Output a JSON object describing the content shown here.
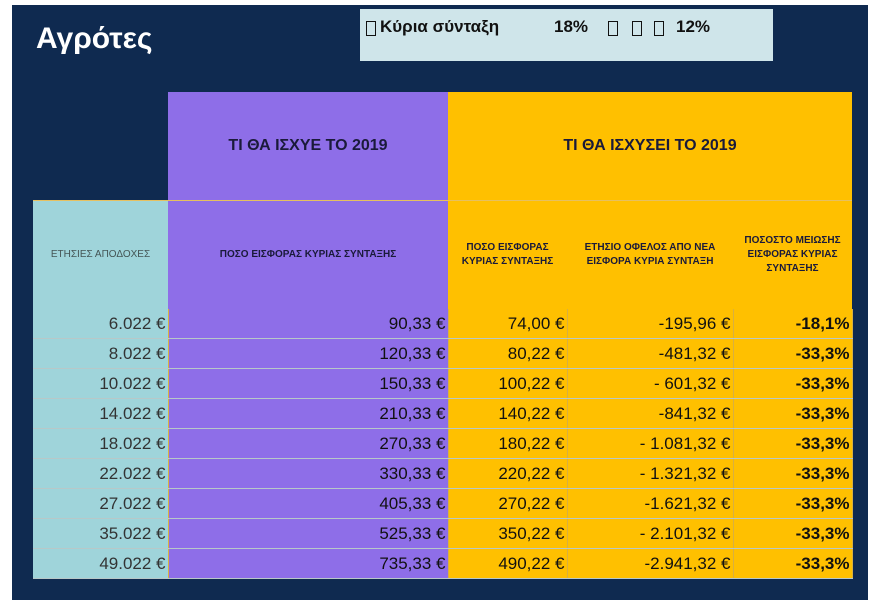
{
  "header": {
    "title": "Αγρότες"
  },
  "banner": {
    "label": "Κύρια σύνταξη",
    "from": "18%",
    "to": "12%"
  },
  "table": {
    "group_headers": [
      "ΤΙ ΘΑ ΙΣΧΥΕ ΤΟ 2019",
      "ΤΙ ΘΑ ΙΣΧΥΣΕΙ ΤΟ 2019"
    ],
    "columns": [
      "ΕΤΗΣΙΕΣ ΑΠΟΔΟΧΕΣ",
      "ΠΟΣΟ ΕΙΣΦΟΡΑΣ ΚΥΡΙΑΣ ΣΥΝΤΑΞΗΣ",
      "ΠΟΣΟ ΕΙΣΦΟΡΑΣ ΚΥΡΙΑΣ ΣΥΝΤΑΞΗΣ",
      "ΕΤΗΣΙΟ ΟΦΕΛΟΣ ΑΠΟ ΝΕΑ ΕΙΣΦΟΡΑ ΚΥΡΙΑ ΣΥΝΤΑΞΗ",
      "ΠΟΣΟΣΤΟ ΜΕΙΩΣΗΣ ΕΙΣΦΟΡΑΣ ΚΥΡΙΑΣ ΣΥΝΤΑΞΗΣ"
    ],
    "rows": [
      [
        "6.022 €",
        "90,33 €",
        "74,00 €",
        "-195,96 €",
        "-18,1%"
      ],
      [
        "8.022 €",
        "120,33 €",
        "80,22 €",
        "-481,32 €",
        "-33,3%"
      ],
      [
        "10.022 €",
        "150,33 €",
        "100,22 €",
        "- 601,32 €",
        "-33,3%"
      ],
      [
        "14.022 €",
        "210,33 €",
        "140,22 €",
        "-841,32 €",
        "-33,3%"
      ],
      [
        "18.022 €",
        "270,33 €",
        "180,22 €",
        "- 1.081,32 €",
        "-33,3%"
      ],
      [
        "22.022 €",
        "330,33 €",
        "220,22 €",
        "- 1.321,32 €",
        "-33,3%"
      ],
      [
        "27.022 €",
        "405,33 €",
        "270,22 €",
        "-1.621,32 €",
        "-33,3%"
      ],
      [
        "35.022 €",
        "525,33 €",
        "350,22 €",
        "- 2.101,32 €",
        "-33,3%"
      ],
      [
        "49.022 €",
        "735,33 €",
        "490,22 €",
        "-2.941,32 €",
        "-33,3%"
      ]
    ]
  }
}
